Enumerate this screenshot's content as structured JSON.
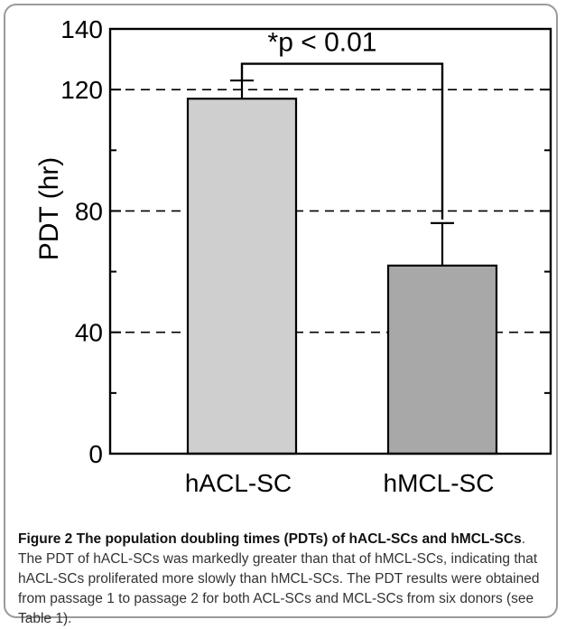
{
  "chart_data": {
    "type": "bar",
    "categories": [
      "hACL-SC",
      "hMCL-SC"
    ],
    "values": [
      117,
      62
    ],
    "errors": [
      6,
      14
    ],
    "ylabel": "PDT (hr)",
    "xlabel": "",
    "ylim": [
      0,
      140
    ],
    "yticks": [
      "0",
      "40",
      "80",
      "120",
      "140"
    ],
    "yticks_values": [
      0,
      40,
      80,
      120,
      140
    ],
    "dashed_gridlines_at": [
      40,
      80,
      120
    ],
    "annotation": "*p < 0.01",
    "bar_colors": [
      "#cfcfcf",
      "#a8a8a8"
    ],
    "grid": true,
    "legend": "none"
  },
  "caption": {
    "label": "Figure 2",
    "title": " The population doubling times (PDTs) of hACL-SCs and ",
    "title_end": "hMCL-SCs",
    "body": ". The PDT of hACL-SCs was markedly greater than that of hMCL-SCs, indicating that hACL-SCs proliferated more slowly than hMCL-SCs. The PDT results were obtained from passage 1 to passage 2 for both ACL-SCs and MCL-SCs from six donors (see Table 1)."
  },
  "colors": {
    "frame": "#9a9a9a",
    "axis": "#000000",
    "caption_text": "#333333"
  }
}
